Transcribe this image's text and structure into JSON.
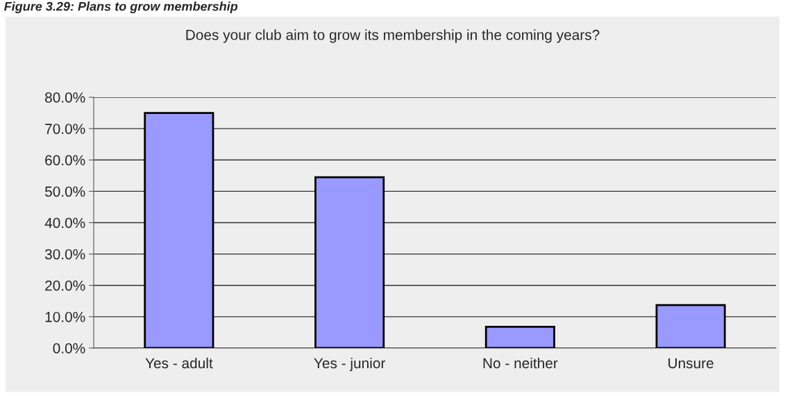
{
  "chart_data": {
    "type": "bar",
    "title": "Does your club aim to grow its membership in the coming years?",
    "annotations": [
      "Figure 3.29: Plans to grow membership"
    ],
    "categories": [
      "Yes - adult",
      "Yes - junior",
      "No - neither",
      "Unsure"
    ],
    "series": [
      {
        "color": "#9999ff",
        "values": [
          75.0,
          54.5,
          6.8,
          13.7
        ]
      }
    ],
    "ylim": [
      0,
      80
    ],
    "yticks": [
      {
        "value": 0,
        "label": "0.0%"
      },
      {
        "value": 10,
        "label": "10.0%"
      },
      {
        "value": 20,
        "label": "20.0%"
      },
      {
        "value": 30,
        "label": "30.0%"
      },
      {
        "value": 40,
        "label": "40.0%"
      },
      {
        "value": 50,
        "label": "50.0%"
      },
      {
        "value": 60,
        "label": "60.0%"
      },
      {
        "value": 70,
        "label": "70.0%"
      },
      {
        "value": 80,
        "label": "80.0%"
      }
    ],
    "grid": "y",
    "legend": false
  }
}
